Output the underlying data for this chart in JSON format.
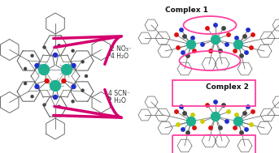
{
  "background_color": "#ffffff",
  "arrow_color": "#d4006e",
  "arrow1_label1": "2 NO₃⁻",
  "arrow1_label2": "4 H₂O",
  "arrow2_label1": "4 SCN⁻",
  "arrow2_label2": "2 H₂O",
  "complex1_label": "Complex 1",
  "complex2_label": "Complex 2",
  "mol_colors": {
    "dy": "#20b090",
    "N": "#2030cc",
    "O": "#dd1010",
    "S": "#cccc00",
    "bond": "#707070",
    "ring": "#505050"
  },
  "ellipse_color": "#ff40a0",
  "rect_color": "#ff40a0",
  "figsize": [
    3.43,
    1.89
  ],
  "dpi": 100
}
